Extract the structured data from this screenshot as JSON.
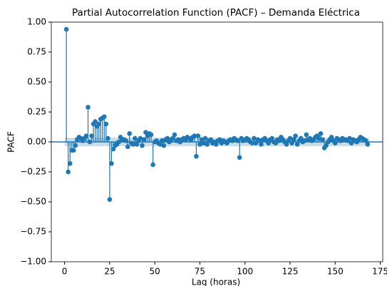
{
  "chart_data": {
    "type": "stem",
    "title": "Partial Autocorrelation Function (PACF) – Demanda Eléctrica",
    "xlabel": "Lag (horas)",
    "ylabel": "PACF",
    "color": "#1f77b4",
    "confint": 0.035,
    "x": [
      1,
      2,
      3,
      4,
      5,
      6,
      7,
      8,
      9,
      10,
      11,
      12,
      13,
      14,
      15,
      16,
      17,
      18,
      19,
      20,
      21,
      22,
      23,
      24,
      25,
      26,
      27,
      28,
      29,
      30,
      31,
      32,
      33,
      34,
      35,
      36,
      37,
      38,
      39,
      40,
      41,
      42,
      43,
      44,
      45,
      46,
      47,
      48,
      49,
      50,
      51,
      52,
      53,
      54,
      55,
      56,
      57,
      58,
      59,
      60,
      61,
      62,
      63,
      64,
      65,
      66,
      67,
      68,
      69,
      70,
      71,
      72,
      73,
      74,
      75,
      76,
      77,
      78,
      79,
      80,
      81,
      82,
      83,
      84,
      85,
      86,
      87,
      88,
      89,
      90,
      91,
      92,
      93,
      94,
      95,
      96,
      97,
      98,
      99,
      100,
      101,
      102,
      103,
      104,
      105,
      106,
      107,
      108,
      109,
      110,
      111,
      112,
      113,
      114,
      115,
      116,
      117,
      118,
      119,
      120,
      121,
      122,
      123,
      124,
      125,
      126,
      127,
      128,
      129,
      130,
      131,
      132,
      133,
      134,
      135,
      136,
      137,
      138,
      139,
      140,
      141,
      142,
      143,
      144,
      145,
      146,
      147,
      148,
      149,
      150,
      151,
      152,
      153,
      154,
      155,
      156,
      157,
      158,
      159,
      160,
      161,
      162,
      163,
      164,
      165,
      166,
      167,
      168
    ],
    "values": [
      0.94,
      -0.25,
      -0.18,
      -0.07,
      -0.07,
      -0.03,
      0.02,
      0.04,
      0.03,
      0.01,
      0.03,
      0.05,
      0.29,
      0.0,
      0.05,
      0.15,
      0.17,
      0.13,
      0.15,
      0.19,
      0.2,
      0.21,
      0.15,
      0.03,
      -0.48,
      -0.18,
      -0.06,
      -0.03,
      -0.02,
      0.0,
      0.04,
      0.02,
      0.02,
      0.01,
      -0.04,
      0.07,
      -0.01,
      -0.02,
      0.03,
      -0.02,
      0.01,
      0.03,
      -0.03,
      0.02,
      0.08,
      0.05,
      0.07,
      0.06,
      -0.19,
      0.0,
      0.01,
      -0.01,
      -0.02,
      0.01,
      -0.03,
      0.02,
      0.03,
      0.0,
      0.02,
      0.03,
      0.06,
      0.01,
      0.02,
      0.0,
      0.02,
      0.03,
      0.02,
      0.04,
      0.03,
      0.02,
      0.04,
      0.05,
      -0.12,
      0.05,
      -0.02,
      0.02,
      -0.01,
      0.03,
      -0.02,
      0.01,
      0.02,
      -0.01,
      0.0,
      -0.02,
      0.01,
      0.02,
      -0.01,
      0.01,
      0.0,
      -0.01,
      0.01,
      0.02,
      0.01,
      0.03,
      0.02,
      0.01,
      -0.13,
      0.03,
      0.01,
      0.02,
      0.03,
      0.02,
      0.0,
      -0.01,
      0.03,
      -0.01,
      0.02,
      0.01,
      -0.02,
      0.02,
      0.03,
      0.01,
      -0.01,
      0.02,
      0.03,
      0.0,
      -0.01,
      0.02,
      0.01,
      0.04,
      0.02,
      0.0,
      -0.02,
      0.01,
      0.03,
      -0.01,
      0.02,
      0.05,
      -0.02,
      0.01,
      0.03,
      0.0,
      0.01,
      0.06,
      0.02,
      0.03,
      0.01,
      0.02,
      0.04,
      0.05,
      0.03,
      0.07,
      0.02,
      -0.05,
      -0.03,
      0.0,
      0.02,
      0.04,
      0.01,
      -0.01,
      0.03,
      0.02,
      0.01,
      0.03,
      0.02,
      0.02,
      0.01,
      0.03,
      -0.01,
      0.02,
      0.01,
      0.0,
      0.02,
      0.04,
      0.03,
      0.02,
      0.01,
      -0.02
    ],
    "xlim": [
      -7.35,
      176.35
    ],
    "xticks": [
      0,
      25,
      50,
      75,
      100,
      125,
      150,
      175
    ],
    "ylim": [
      -1,
      1
    ],
    "yticks": [
      {
        "value": -1,
        "label": "−1.00"
      },
      {
        "value": -0.75,
        "label": "−0.75"
      },
      {
        "value": -0.5,
        "label": "−0.50"
      },
      {
        "value": -0.25,
        "label": "−0.25"
      },
      {
        "value": 0,
        "label": "0.00"
      },
      {
        "value": 0.25,
        "label": "0.25"
      },
      {
        "value": 0.5,
        "label": "0.50"
      },
      {
        "value": 0.75,
        "label": "0.75"
      },
      {
        "value": 1,
        "label": "1.00"
      }
    ]
  }
}
